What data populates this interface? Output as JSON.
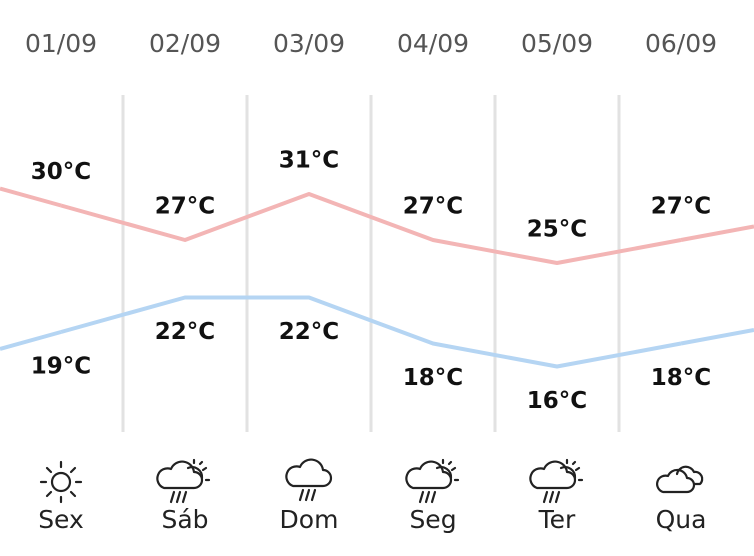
{
  "chart_data": {
    "type": "line",
    "categories": [
      "01/09",
      "02/09",
      "03/09",
      "04/09",
      "05/09",
      "06/09"
    ],
    "days": [
      "Sex",
      "Sáb",
      "Dom",
      "Seg",
      "Ter",
      "Qua"
    ],
    "series": [
      {
        "color": "#f3b5b5",
        "values": [
          30,
          27,
          31,
          27,
          25,
          27
        ],
        "value_labels": [
          "30°C",
          "27°C",
          "31°C",
          "27°C",
          "25°C",
          "27°C"
        ]
      },
      {
        "color": "#b5d5f3",
        "values": [
          19,
          22,
          22,
          18,
          16,
          18
        ],
        "value_labels": [
          "19°C",
          "22°C",
          "22°C",
          "18°C",
          "16°C",
          "18°C"
        ]
      }
    ]
  }
}
